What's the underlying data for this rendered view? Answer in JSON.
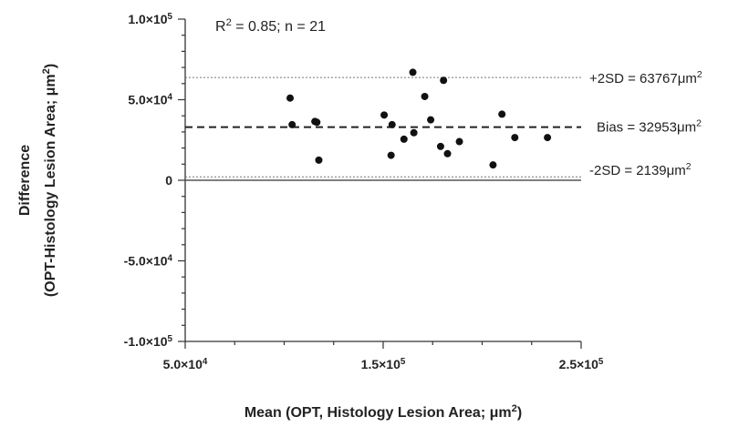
{
  "chart_data": {
    "type": "scatter",
    "title": "",
    "xlabel": {
      "pre": "Mean (OPT, Histology Lesion Area; ",
      "unit": "μm",
      "sup": "2",
      "post": ")"
    },
    "ylabel": {
      "line1": "Difference",
      "line2": {
        "pre": "(OPT-Histology Lesion Area; ",
        "unit": "μm",
        "sup": "2",
        "post": ")"
      }
    },
    "xlim": [
      50000,
      250000
    ],
    "ylim": [
      -100000,
      100000
    ],
    "x_ticks": [
      {
        "value": 50000,
        "mant": "5.0×10",
        "exp": "4"
      },
      {
        "value": 150000,
        "mant": "1.5×10",
        "exp": "5"
      },
      {
        "value": 250000,
        "mant": "2.5×10",
        "exp": "5"
      }
    ],
    "y_ticks": [
      {
        "value": 100000,
        "mant": "1.0×10",
        "exp": "5"
      },
      {
        "value": 50000,
        "mant": "5.0×10",
        "exp": "4"
      },
      {
        "value": 0,
        "mant": "0",
        "exp": ""
      },
      {
        "value": -50000,
        "mant": "-5.0×10",
        "exp": "4"
      },
      {
        "value": -100000,
        "mant": "-1.0×10",
        "exp": "5"
      }
    ],
    "stats_text": {
      "pre": "R",
      "sup": "2",
      "post": " = 0.85; n = 21"
    },
    "reference_lines": [
      {
        "name": "upper",
        "value": 63767,
        "style": "dotted",
        "label": {
          "pre": "+2SD = 63767",
          "unit": "μm",
          "sup": "2"
        }
      },
      {
        "name": "bias",
        "value": 32953,
        "style": "dashed",
        "label": {
          "pre": "Bias = 32953",
          "unit": "μm",
          "sup": "2"
        }
      },
      {
        "name": "lower",
        "value": 2139,
        "style": "dotted",
        "label": {
          "pre": "-2SD = 2139",
          "unit": "μm",
          "sup": "2"
        }
      }
    ],
    "points": [
      {
        "x": 103000,
        "y": 51000
      },
      {
        "x": 104000,
        "y": 34500
      },
      {
        "x": 115500,
        "y": 36500
      },
      {
        "x": 116500,
        "y": 36000
      },
      {
        "x": 117500,
        "y": 12500
      },
      {
        "x": 150500,
        "y": 40500
      },
      {
        "x": 154000,
        "y": 15500
      },
      {
        "x": 154500,
        "y": 34500
      },
      {
        "x": 160500,
        "y": 25500
      },
      {
        "x": 165000,
        "y": 67000
      },
      {
        "x": 165500,
        "y": 29500
      },
      {
        "x": 171000,
        "y": 52000
      },
      {
        "x": 174000,
        "y": 37500
      },
      {
        "x": 179000,
        "y": 21000
      },
      {
        "x": 180500,
        "y": 62000
      },
      {
        "x": 182500,
        "y": 16500
      },
      {
        "x": 188500,
        "y": 24000
      },
      {
        "x": 205500,
        "y": 9500
      },
      {
        "x": 210000,
        "y": 41000
      },
      {
        "x": 216500,
        "y": 26500
      },
      {
        "x": 233000,
        "y": 26500
      }
    ]
  }
}
